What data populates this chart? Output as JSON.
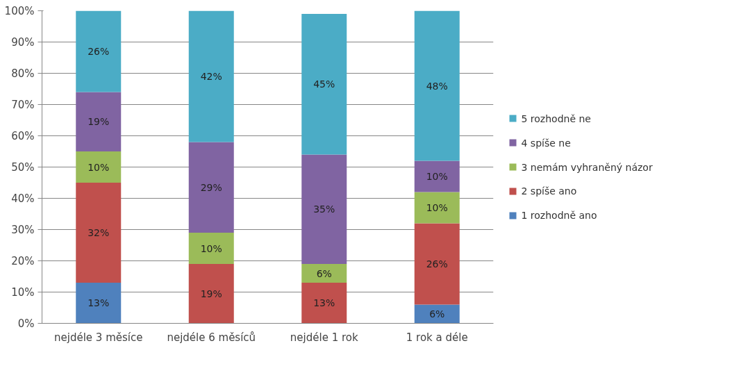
{
  "chart_data": {
    "type": "bar",
    "stacked": true,
    "grid": "y",
    "legend": "right",
    "categories": [
      "nejdéle 3 měsíce",
      "nejdéle 6 měsíců",
      "nejdéle 1 rok",
      "1 rok a déle"
    ],
    "ylim": [
      0,
      100
    ],
    "yticks": [
      {
        "value": 0,
        "label": "0%"
      },
      {
        "value": 10,
        "label": "10%"
      },
      {
        "value": 20,
        "label": "20%"
      },
      {
        "value": 30,
        "label": "30%"
      },
      {
        "value": 40,
        "label": "40%"
      },
      {
        "value": 50,
        "label": "50%"
      },
      {
        "value": 60,
        "label": "60%"
      },
      {
        "value": 70,
        "label": "70%"
      },
      {
        "value": 80,
        "label": "80%"
      },
      {
        "value": 90,
        "label": "90%"
      },
      {
        "value": 100,
        "label": "100%"
      }
    ],
    "series": [
      {
        "name": "1 rozhodně ano",
        "color": "#4f81bd",
        "values": [
          13,
          null,
          null,
          6
        ],
        "value_labels": [
          "13%",
          null,
          null,
          "6%"
        ]
      },
      {
        "name": "2 spíše ano",
        "color": "#c0504d",
        "values": [
          32,
          19,
          13,
          26
        ],
        "value_labels": [
          "32%",
          "19%",
          "13%",
          "26%"
        ]
      },
      {
        "name": "3 nemám vyhraněný názor",
        "color": "#9bbb59",
        "values": [
          10,
          10,
          6,
          10
        ],
        "value_labels": [
          "10%",
          "10%",
          "6%",
          "10%"
        ]
      },
      {
        "name": "4 spíše ne",
        "color": "#8064a2",
        "values": [
          19,
          29,
          35,
          10
        ],
        "value_labels": [
          "19%",
          "29%",
          "35%",
          "10%"
        ]
      },
      {
        "name": "5 rozhodně ne",
        "color": "#4bacc6",
        "values": [
          26,
          42,
          45,
          48
        ],
        "value_labels": [
          "26%",
          "42%",
          "45%",
          "48%"
        ]
      }
    ]
  }
}
